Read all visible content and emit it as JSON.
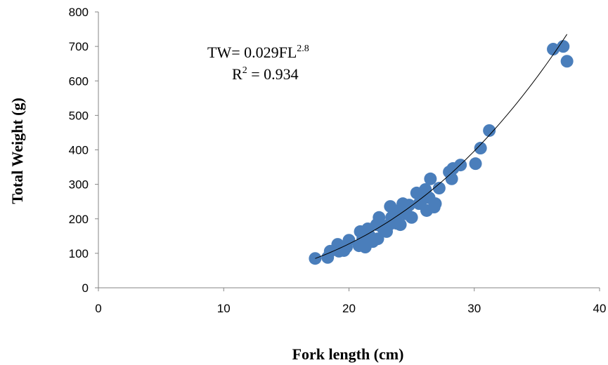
{
  "chart_data": {
    "type": "scatter",
    "x_label": "Fork length (cm)",
    "y_label": "Total Weight (g)",
    "annotations": [
      {
        "text": "TW= 0.029FL",
        "sup": "2.8"
      },
      {
        "text": "R",
        "sup": "2",
        "rest": " = 0.934"
      }
    ],
    "color": "#4a7ebb",
    "x": [
      17.3,
      18.3,
      18.5,
      19.1,
      19.2,
      19.6,
      19.8,
      20.0,
      20.8,
      20.9,
      21.1,
      21.3,
      21.5,
      21.6,
      21.9,
      22.2,
      22.3,
      22.4,
      22.7,
      23.0,
      23.2,
      23.3,
      23.4,
      23.6,
      23.8,
      24.0,
      24.1,
      24.3,
      24.6,
      24.8,
      25.0,
      25.4,
      25.6,
      25.8,
      26.1,
      26.2,
      26.4,
      26.5,
      26.8,
      26.9,
      27.2,
      28.0,
      28.2,
      28.3,
      28.9,
      30.1,
      30.5,
      31.2,
      36.3,
      37.1,
      37.4
    ],
    "values": [
      85,
      88,
      106,
      126,
      106,
      108,
      118,
      138,
      122,
      163,
      142,
      118,
      171,
      153,
      134,
      183,
      142,
      204,
      173,
      163,
      183,
      236,
      204,
      224,
      187,
      216,
      183,
      244,
      214,
      240,
      204,
      275,
      244,
      254,
      285,
      224,
      261,
      316,
      234,
      244,
      289,
      336,
      316,
      346,
      356,
      360,
      405,
      456,
      692,
      700,
      657
    ],
    "trendline": {
      "coefficient": 0.029,
      "exponent": 2.8,
      "xlim": [
        17.3,
        37.4
      ],
      "color": "#000000"
    },
    "xlim": [
      0,
      40
    ],
    "xticks": [
      0,
      10,
      20,
      30,
      40
    ],
    "ylim": [
      0,
      800
    ],
    "yticks": [
      0,
      100,
      200,
      300,
      400,
      500,
      600,
      700,
      800
    ]
  }
}
